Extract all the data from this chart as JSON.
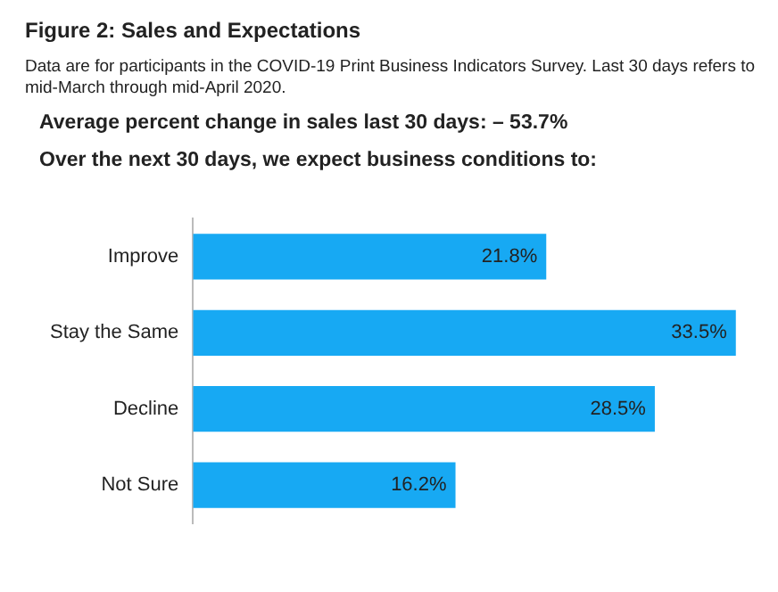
{
  "chart_data": {
    "type": "bar",
    "orientation": "horizontal",
    "title": "Figure 2: Sales and Expectations",
    "subtitle": "Data are for participants in the COVID-19 Print Business Indicators Survey. Last 30 days refers to mid-March through mid-April 2020.",
    "annotations": [
      "Average percent change in sales last 30 days:  – 53.7%",
      "Over the next 30 days, we expect business conditions to:"
    ],
    "categories": [
      "Improve",
      "Stay the Same",
      "Decline",
      "Not Sure"
    ],
    "values": [
      21.8,
      33.5,
      28.5,
      16.2
    ],
    "value_labels": [
      "21.8%",
      "33.5%",
      "28.5%",
      "16.2%"
    ],
    "color": "#17a9f3",
    "legend": false
  }
}
